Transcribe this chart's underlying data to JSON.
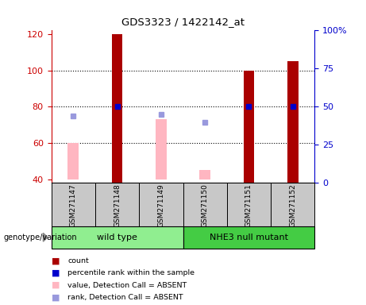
{
  "title": "GDS3323 / 1422142_at",
  "samples": [
    "GSM271147",
    "GSM271148",
    "GSM271149",
    "GSM271150",
    "GSM271151",
    "GSM271152"
  ],
  "group_labels": [
    "wild type",
    "NHE3 null mutant"
  ],
  "group_colors": [
    "#90EE90",
    "#44CC44"
  ],
  "red_bar_values": [
    null,
    120,
    null,
    null,
    100,
    105
  ],
  "pink_bar_bottom": [
    40,
    null,
    40,
    40,
    null,
    null
  ],
  "pink_bar_top": [
    60,
    null,
    73,
    45,
    null,
    null
  ],
  "blue_dot_right_vals": [
    null,
    50,
    null,
    null,
    50,
    50
  ],
  "light_blue_dot_right_vals": [
    44,
    null,
    45,
    40,
    null,
    null
  ],
  "ylim_left": [
    38,
    122
  ],
  "ylim_right": [
    0,
    100
  ],
  "yticks_left": [
    40,
    60,
    80,
    100,
    120
  ],
  "yticks_right": [
    0,
    25,
    50,
    75,
    100
  ],
  "ytick_right_labels": [
    "0",
    "25",
    "50",
    "75",
    "100%"
  ],
  "left_axis_color": "#CC0000",
  "right_axis_color": "#0000CC",
  "bar_width": 0.25,
  "red_bar_color": "#AA0000",
  "pink_bar_color": "#FFB6C1",
  "blue_dot_color": "#0000CC",
  "light_blue_dot_color": "#9999DD",
  "sample_box_color": "#C8C8C8",
  "hline_vals": [
    60,
    80,
    100
  ],
  "dotted_line_color": "black"
}
